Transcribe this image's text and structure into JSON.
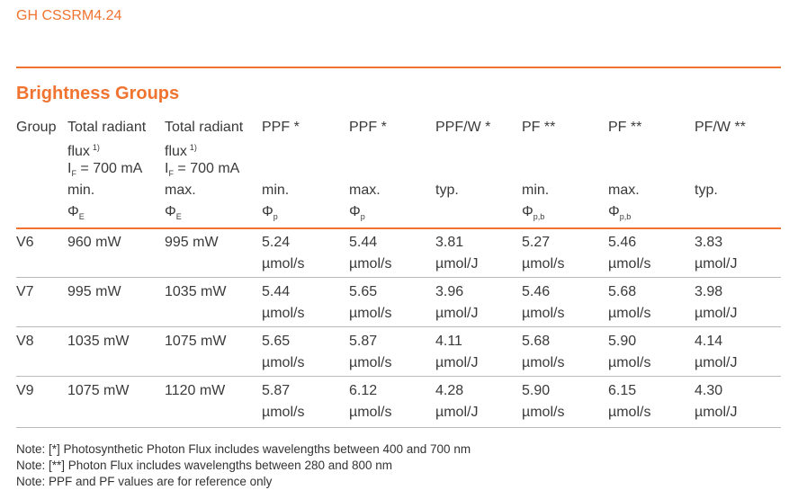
{
  "header": {
    "title": "GH CSSRM4.24"
  },
  "section": {
    "title": "Brightness Groups"
  },
  "table": {
    "columns": [
      {
        "name": "Group"
      },
      {
        "name": "Total radiant flux",
        "note": "1)",
        "condition": {
          "symbol": "I",
          "sub": "F",
          "text": "= 700 mA"
        },
        "stat": "min.",
        "symbol": {
          "main": "Φ",
          "sub": "E"
        }
      },
      {
        "name": "Total radiant flux",
        "note": "1)",
        "condition": {
          "symbol": "I",
          "sub": "F",
          "text": "= 700 mA"
        },
        "stat": "max.",
        "symbol": {
          "main": "Φ",
          "sub": "E"
        }
      },
      {
        "name": "PPF *",
        "stat": "min.",
        "symbol": {
          "main": "Φ",
          "sub": "p"
        }
      },
      {
        "name": "PPF *",
        "stat": "max.",
        "symbol": {
          "main": "Φ",
          "sub": "p"
        }
      },
      {
        "name": "PPF/W *",
        "stat": "typ."
      },
      {
        "name": "PF **",
        "stat": "min.",
        "symbol": {
          "main": "Φ",
          "sub": "p,b"
        }
      },
      {
        "name": "PF **",
        "stat": "max.",
        "symbol": {
          "main": "Φ",
          "sub": "p,b"
        }
      },
      {
        "name": "PF/W **",
        "stat": "typ."
      }
    ],
    "rows": [
      [
        "V6",
        "960 mW",
        "995 mW",
        [
          "5.24",
          "µmol/s"
        ],
        [
          "5.44",
          "µmol/s"
        ],
        [
          "3.81",
          "µmol/J"
        ],
        [
          "5.27",
          "µmol/s"
        ],
        [
          "5.46",
          "µmol/s"
        ],
        [
          "3.83",
          "µmol/J"
        ]
      ],
      [
        "V7",
        "995 mW",
        "1035 mW",
        [
          "5.44",
          "µmol/s"
        ],
        [
          "5.65",
          "µmol/s"
        ],
        [
          "3.96",
          "µmol/J"
        ],
        [
          "5.46",
          "µmol/s"
        ],
        [
          "5.68",
          "µmol/s"
        ],
        [
          "3.98",
          "µmol/J"
        ]
      ],
      [
        "V8",
        "1035 mW",
        "1075 mW",
        [
          "5.65",
          "µmol/s"
        ],
        [
          "5.87",
          "µmol/s"
        ],
        [
          "4.11",
          "µmol/J"
        ],
        [
          "5.68",
          "µmol/s"
        ],
        [
          "5.90",
          "µmol/s"
        ],
        [
          "4.14",
          "µmol/J"
        ]
      ],
      [
        "V9",
        "1075 mW",
        "1120 mW",
        [
          "5.87",
          "µmol/s"
        ],
        [
          "6.12",
          "µmol/s"
        ],
        [
          "4.28",
          "µmol/J"
        ],
        [
          "5.90",
          "µmol/s"
        ],
        [
          "6.15",
          "µmol/s"
        ],
        [
          "4.30",
          "µmol/J"
        ]
      ]
    ]
  },
  "notes": [
    "Note: [*] Photosynthetic Photon Flux includes wavelengths between 400 and 700 nm",
    "Note: [**] Photon Flux includes wavelengths between 280 and 800 nm",
    "Note: PPF and PF values are for reference only"
  ]
}
